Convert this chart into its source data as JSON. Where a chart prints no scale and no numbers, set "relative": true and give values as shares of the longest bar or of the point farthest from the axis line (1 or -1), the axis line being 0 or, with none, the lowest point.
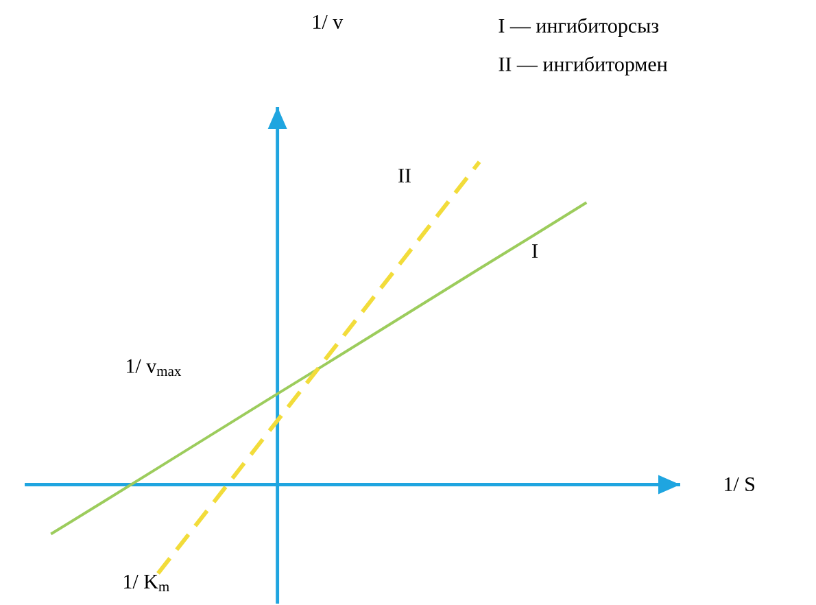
{
  "chart_data": {
    "type": "line",
    "relative": true,
    "annotations": [
      "I — ингибиторсыз",
      "II — ингибитормен",
      "1/ v$_{max}$",
      "1/ K$_{m}$",
      "1/ v",
      "1/ S"
    ],
    "categories": [
      null,
      null,
      null,
      null,
      null,
      null,
      null,
      null,
      null,
      null,
      null
    ],
    "ref_lines": [
      {
        "axis": "y",
        "value": 0,
        "color": "#1fa5e0"
      }
    ],
    "series": [
      {
        "name": "I",
        "color": "#9ccc5c",
        "values": [
          -0.153,
          -0.051,
          0.052,
          0.155,
          0.258,
          0.36,
          0.463,
          0.566,
          0.669,
          0.771,
          0.874
        ],
        "line_style": "solid"
      },
      {
        "name": "II",
        "color": "#f2dc3a",
        "values": [
          null,
          null,
          -0.275,
          -0.063,
          0.15,
          0.362,
          0.575,
          0.787,
          1.0,
          null,
          null
        ],
        "line_style": "dashed"
      }
    ]
  }
}
